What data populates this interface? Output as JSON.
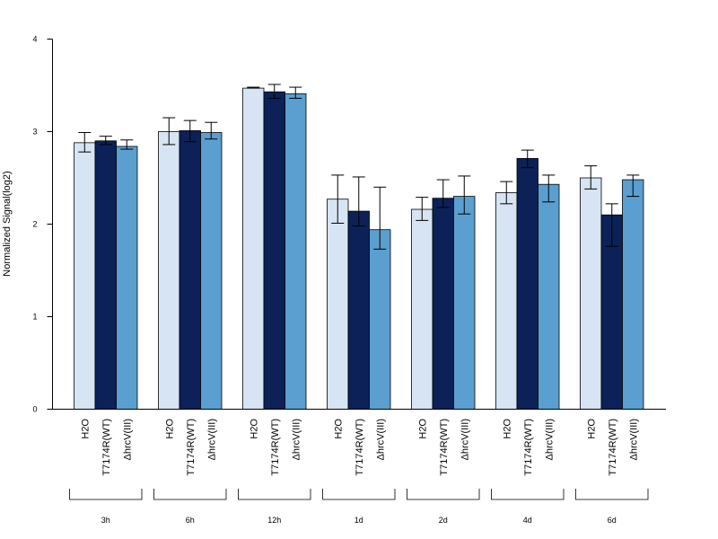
{
  "chart_data": {
    "type": "bar",
    "title": "",
    "ylabel": "Normalized Signal(log2)",
    "xlabel": "",
    "ylim": [
      0,
      4
    ],
    "yticks": [
      0,
      1,
      2,
      3,
      4
    ],
    "grid": false,
    "legend": "none",
    "groups": [
      "3h",
      "6h",
      "12h",
      "1d",
      "2d",
      "4d",
      "6d"
    ],
    "series": [
      {
        "name": "H2O",
        "color": "#d6e4f3",
        "values": [
          2.88,
          3.0,
          3.47,
          2.27,
          2.16,
          2.34,
          2.5
        ],
        "err_low": [
          2.78,
          2.86,
          3.47,
          2.01,
          2.04,
          2.22,
          2.38
        ],
        "err_high": [
          2.99,
          3.15,
          3.48,
          2.53,
          2.29,
          2.46,
          2.63
        ]
      },
      {
        "name": "T7174R(WT)",
        "color": "#0b2157",
        "values": [
          2.9,
          3.01,
          3.43,
          2.14,
          2.28,
          2.71,
          2.1
        ],
        "err_low": [
          2.86,
          2.89,
          3.36,
          1.98,
          2.18,
          2.61,
          1.76
        ],
        "err_high": [
          2.95,
          3.12,
          3.51,
          2.51,
          2.48,
          2.8,
          2.22
        ]
      },
      {
        "name": "ΔhrcV(III)",
        "color": "#5a9fcf",
        "values": [
          2.84,
          2.99,
          3.41,
          1.94,
          2.3,
          2.43,
          2.48
        ],
        "err_low": [
          2.81,
          2.92,
          3.36,
          1.73,
          2.11,
          2.24,
          2.3
        ],
        "err_high": [
          2.91,
          3.1,
          3.48,
          2.4,
          2.52,
          2.53,
          2.53
        ]
      }
    ]
  }
}
